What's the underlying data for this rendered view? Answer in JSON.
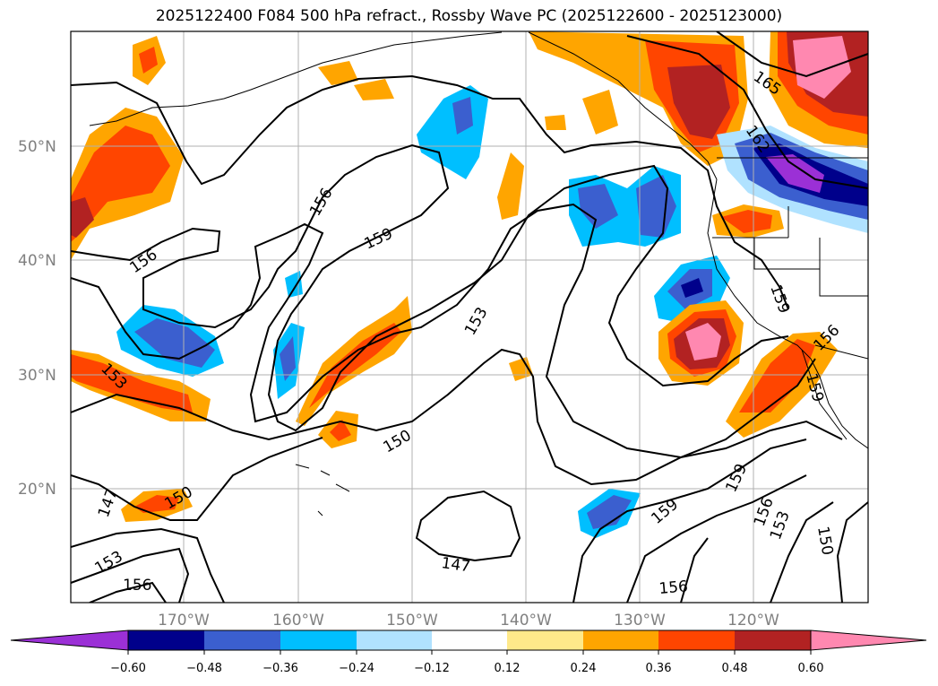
{
  "title": "2025122400 F084 500 hPa refract., Rossby Wave PC (2025122600 - 2025123000)",
  "map": {
    "lat_labels": [
      "50°N",
      "40°N",
      "30°N",
      "20°N"
    ],
    "lon_labels": [
      "170°W",
      "160°W",
      "150°W",
      "140°W",
      "130°W",
      "120°W"
    ],
    "contour_labels": [
      "165",
      "162",
      "156",
      "159",
      "156",
      "153",
      "153",
      "150",
      "147",
      "150",
      "153",
      "156",
      "147",
      "159",
      "159",
      "156",
      "153",
      "150",
      "156",
      "159",
      "156",
      "159"
    ]
  },
  "colorbar": {
    "colors": [
      "#9b30d6",
      "#00008b",
      "#3b5fcf",
      "#00bfff",
      "#b0e2ff",
      "#ffffff",
      "#ffe98a",
      "#ffa500",
      "#ff4500",
      "#b22222",
      "#ff88b0"
    ],
    "tick_labels": [
      "−0.60",
      "−0.48",
      "−0.36",
      "−0.24",
      "−0.12",
      "0.12",
      "0.24",
      "0.36",
      "0.48",
      "0.60"
    ]
  }
}
